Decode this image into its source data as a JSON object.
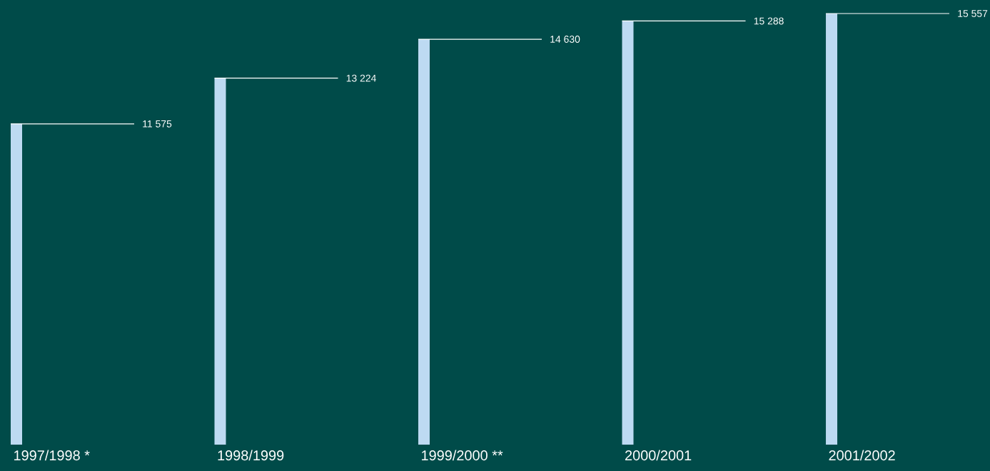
{
  "chart_data": {
    "type": "bar",
    "categories": [
      "1997/1998 *",
      "1998/1999",
      "1999/2000 **",
      "2000/2001",
      "2001/2002"
    ],
    "values": [
      11575,
      13224,
      14630,
      15288,
      15557
    ],
    "value_labels": [
      "11 575",
      "13 224",
      "14 630",
      "15 288",
      "15 557"
    ],
    "color": "#bddaf2"
  }
}
